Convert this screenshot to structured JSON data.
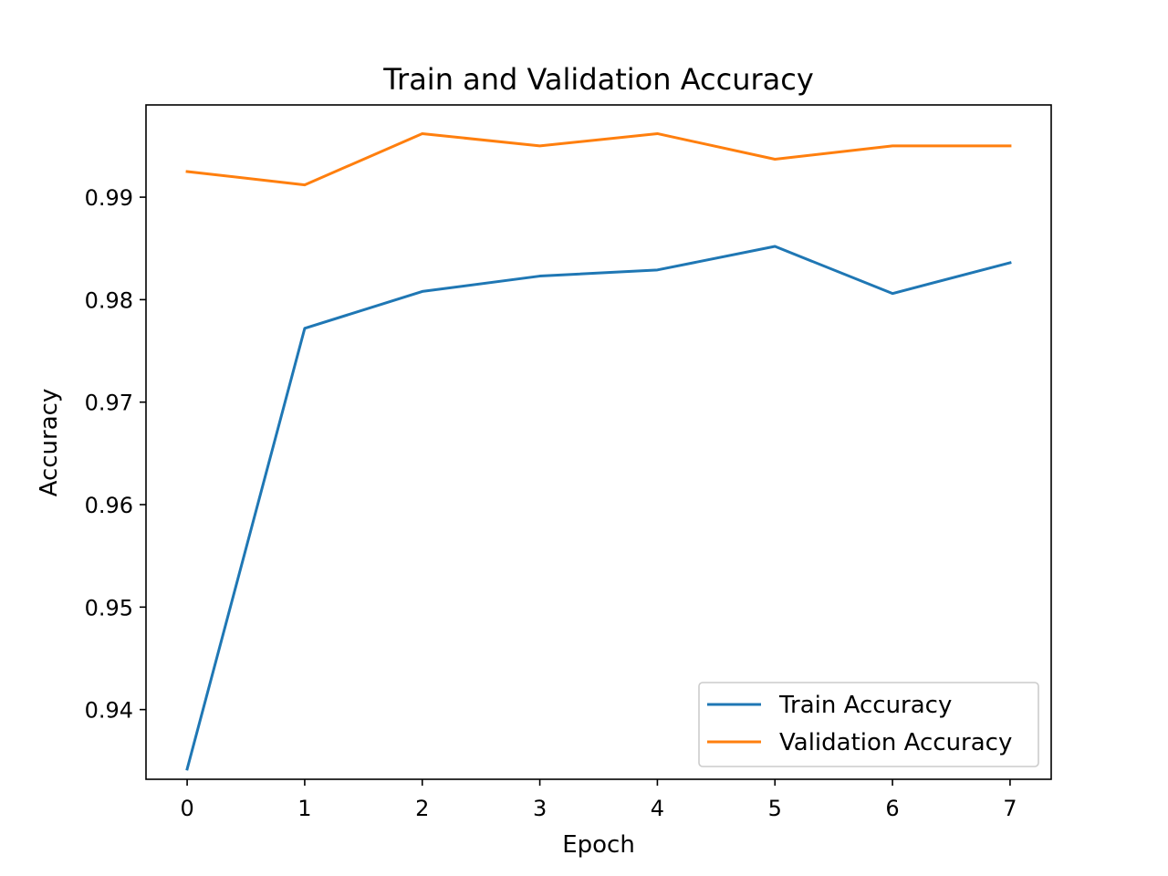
{
  "chart_data": {
    "type": "line",
    "title": "Train and Validation Accuracy",
    "xlabel": "Epoch",
    "ylabel": "Accuracy",
    "x": [
      0,
      1,
      2,
      3,
      4,
      5,
      6,
      7
    ],
    "xlim": [
      -0.35,
      7.35
    ],
    "ylim": [
      0.9332,
      0.999
    ],
    "xticks": [
      0,
      1,
      2,
      3,
      4,
      5,
      6,
      7
    ],
    "xtick_labels": [
      "0",
      "1",
      "2",
      "3",
      "4",
      "5",
      "6",
      "7"
    ],
    "yticks": [
      0.94,
      0.95,
      0.96,
      0.97,
      0.98,
      0.99
    ],
    "ytick_labels": [
      "0.94",
      "0.95",
      "0.96",
      "0.97",
      "0.98",
      "0.99"
    ],
    "grid": false,
    "legend_position": "lower-right",
    "series": [
      {
        "name": "Train Accuracy",
        "color": "#1f77b4",
        "values": [
          0.9342,
          0.9772,
          0.9808,
          0.9823,
          0.9829,
          0.9852,
          0.9806,
          0.9836
        ]
      },
      {
        "name": "Validation Accuracy",
        "color": "#ff7f0e",
        "values": [
          0.9925,
          0.9912,
          0.9962,
          0.995,
          0.9962,
          0.9937,
          0.995,
          0.995
        ]
      }
    ]
  }
}
